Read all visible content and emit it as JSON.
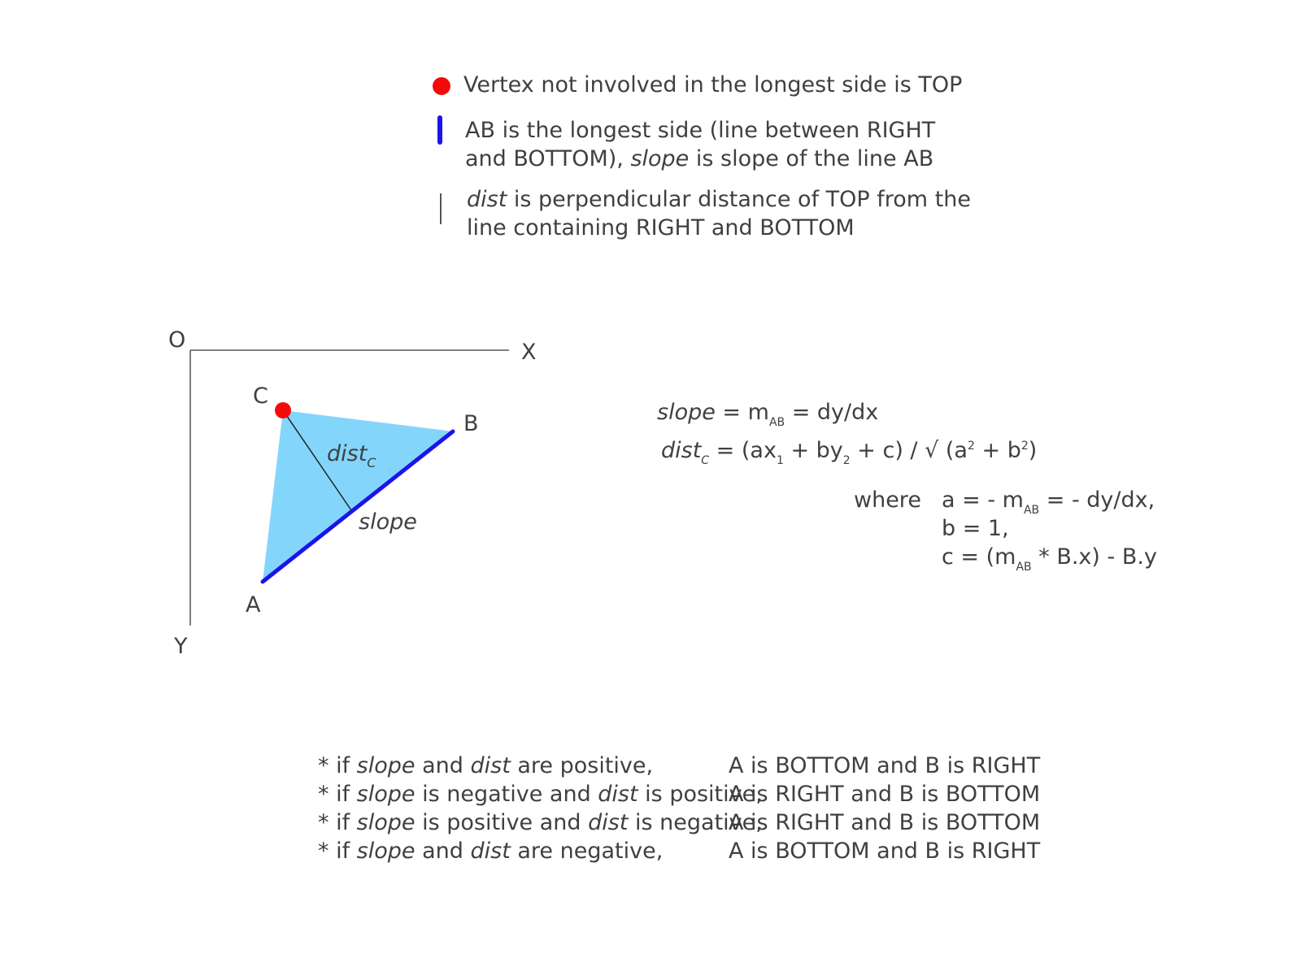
{
  "colors": {
    "top_vertex": "#f50a0a",
    "longest_side": "#1c14e8",
    "triangle_fill": "#84d5fc",
    "text": "#404040"
  },
  "legend": {
    "items": [
      {
        "icon": "red-dot-icon",
        "text": "Vertex not involved in the longest side is TOP"
      },
      {
        "icon": "blue-line-icon",
        "segments": [
          {
            "t": "AB is the longest side (line between RIGHT",
            "br": true
          },
          {
            "t": "and BOTTOM), "
          },
          {
            "t": "slope",
            "i": true
          },
          {
            "t": " is slope of the line AB"
          }
        ]
      },
      {
        "icon": "thin-line-icon",
        "segments": [
          {
            "t": "dist",
            "i": true
          },
          {
            "t": " is perpendicular distance of TOP from the",
            "br": true
          },
          {
            "t": "line containing RIGHT and BOTTOM"
          }
        ]
      }
    ]
  },
  "diagram": {
    "origin_label": "O",
    "x_axis_label": "X",
    "y_axis_label": "Y",
    "vertex_a": "A",
    "vertex_b": "B",
    "vertex_c": "C",
    "dist_label": "dist",
    "dist_sub": "C",
    "slope_label": "slope"
  },
  "formulas": {
    "slope_line": [
      {
        "t": "slope",
        "i": true
      },
      {
        "t": " = m"
      },
      {
        "t": "AB",
        "sub": true
      },
      {
        "t": " = dy/dx"
      }
    ],
    "dist_line": [
      {
        "t": "dist",
        "i": true
      },
      {
        "t": "C",
        "sub": true,
        "i": true
      },
      {
        "t": " = (ax"
      },
      {
        "t": "1",
        "sub": true
      },
      {
        "t": " + by"
      },
      {
        "t": "2",
        "sub": true
      },
      {
        "t": " + c) / √ (a"
      },
      {
        "t": "2",
        "sup": true
      },
      {
        "t": " + b"
      },
      {
        "t": "2",
        "sup": true
      },
      {
        "t": ")"
      }
    ],
    "where_label": "where",
    "where_lines": [
      [
        {
          "t": "a = - m"
        },
        {
          "t": "AB",
          "sub": true
        },
        {
          "t": "  =  - dy/dx,"
        }
      ],
      [
        {
          "t": "b = 1,"
        }
      ],
      [
        {
          "t": "c = (m"
        },
        {
          "t": "AB",
          "sub": true
        },
        {
          "t": " * B.x) - B.y"
        }
      ]
    ]
  },
  "conditions": [
    {
      "condition": [
        {
          "t": "* if "
        },
        {
          "t": "slope",
          "i": true
        },
        {
          "t": " and "
        },
        {
          "t": "dist",
          "i": true
        },
        {
          "t": " are positive,"
        }
      ],
      "result": "A is BOTTOM and B is RIGHT"
    },
    {
      "condition": [
        {
          "t": "* if "
        },
        {
          "t": "slope",
          "i": true
        },
        {
          "t": " is negative and "
        },
        {
          "t": "dist",
          "i": true
        },
        {
          "t": " is positive,"
        }
      ],
      "result": "A is RIGHT and B is BOTTOM"
    },
    {
      "condition": [
        {
          "t": "* if "
        },
        {
          "t": "slope",
          "i": true
        },
        {
          "t": " is positive and "
        },
        {
          "t": "dist",
          "i": true
        },
        {
          "t": " is negative,"
        }
      ],
      "result": "A is RIGHT and B is BOTTOM"
    },
    {
      "condition": [
        {
          "t": "* if "
        },
        {
          "t": "slope",
          "i": true
        },
        {
          "t": " and "
        },
        {
          "t": "dist",
          "i": true
        },
        {
          "t": " are negative,"
        }
      ],
      "result": "A is BOTTOM and B is RIGHT"
    }
  ]
}
